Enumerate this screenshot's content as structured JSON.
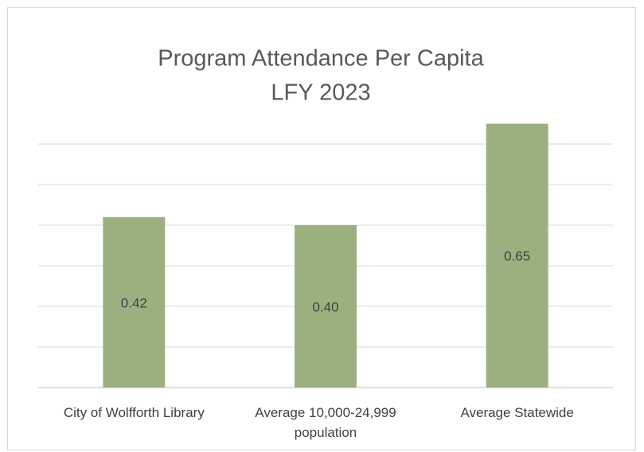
{
  "chart_data": {
    "type": "bar",
    "title": "Program Attendance Per Capita",
    "subtitle": "LFY 2023",
    "categories": [
      "City of Wolfforth Library",
      "Average 10,000-24,999 population",
      "Average Statewide"
    ],
    "values": [
      0.42,
      0.4,
      0.65
    ],
    "value_labels": [
      "0.42",
      "0.40",
      "0.65"
    ],
    "color": "#9bb07f",
    "ylim": [
      0,
      0.65
    ],
    "yticks": [
      0,
      0.1,
      0.2,
      0.3,
      0.4,
      0.5,
      0.6
    ],
    "grid": true
  }
}
